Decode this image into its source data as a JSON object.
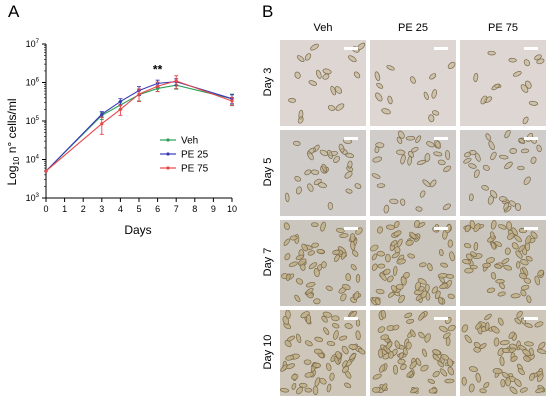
{
  "panel_a_label": "A",
  "panel_b_label": "B",
  "chart_data": {
    "type": "line",
    "title": "",
    "xlabel": "Days",
    "ylabel_base": "Log",
    "ylabel_sub": "10",
    "ylabel_rest": " n° cells/ml",
    "x": [
      0,
      3,
      4,
      5,
      6,
      7,
      10
    ],
    "xlim": [
      0,
      10
    ],
    "xticks": [
      "0",
      "1",
      "2",
      "3",
      "4",
      "5",
      "6",
      "7",
      "8",
      "9",
      "10"
    ],
    "ylim": [
      1000,
      10000000
    ],
    "y_scale": "log",
    "yticks": [
      {
        "base": "10",
        "exp": "3"
      },
      {
        "base": "10",
        "exp": "4"
      },
      {
        "base": "10",
        "exp": "5"
      },
      {
        "base": "10",
        "exp": "6"
      },
      {
        "base": "10",
        "exp": "7"
      }
    ],
    "grid": false,
    "legend_position": "center-right",
    "significance_label": "**",
    "significance_x": 6,
    "series": [
      {
        "name": "Veh",
        "color": "#2ca05a",
        "values": [
          5000,
          140000,
          260000,
          480000,
          700000,
          850000,
          380000
        ],
        "errors": [
          0,
          30000,
          60000,
          150000,
          120000,
          180000,
          120000
        ]
      },
      {
        "name": "PE 25",
        "color": "#3a3ab8",
        "values": [
          5000,
          150000,
          320000,
          620000,
          950000,
          1050000,
          380000
        ],
        "errors": [
          0,
          25000,
          60000,
          160000,
          200000,
          200000,
          100000
        ]
      },
      {
        "name": "PE 75",
        "color": "#e8474a",
        "values": [
          5000,
          85000,
          200000,
          500000,
          800000,
          1100000,
          330000
        ],
        "errors": [
          0,
          40000,
          60000,
          180000,
          220000,
          400000,
          80000
        ]
      }
    ]
  },
  "micrographs": {
    "columns": [
      "Veh",
      "PE 25",
      "PE 75"
    ],
    "rows": [
      "Day 3",
      "Day 5",
      "Day 7",
      "Day 10"
    ]
  },
  "colors": {
    "day3_bg": "#ddd6d2",
    "day5_bg": "#cfccca",
    "day7_bg": "#cbc6bd",
    "day10_bg": "#cdc6b9",
    "cell_outline": "#7a6a4a",
    "cell_fill": "#bfae86",
    "scale_bar": "#ffffff"
  }
}
